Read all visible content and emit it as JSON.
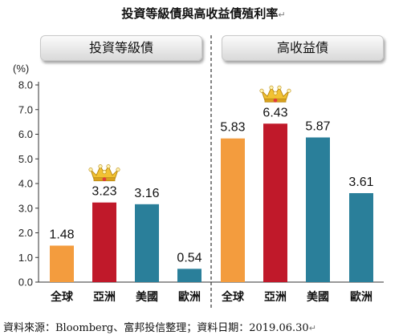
{
  "title": "投資等級債與高收益債殖利率",
  "title_mark": "↵",
  "source_note": "資料來源：Bloomberg、富邦投信整理；資料日期：2019.06.30",
  "source_mark": "↵",
  "colors": {
    "orange": "#F39C3E",
    "red": "#C0192A",
    "teal": "#2A7F9A",
    "axis": "#333333",
    "divider": "#333333"
  },
  "icons": {
    "top_marker": "crown-icon"
  },
  "chart_data": {
    "type": "bar",
    "ylabel": "(%)",
    "ylim": [
      0,
      8
    ],
    "yticks": [
      "0.0",
      "1.0",
      "2.0",
      "3.0",
      "4.0",
      "5.0",
      "6.0",
      "7.0",
      "8.0"
    ],
    "grid": false,
    "groups": [
      {
        "name": "投資等級債",
        "categories": [
          "全球",
          "亞洲",
          "美國",
          "歐洲"
        ],
        "values": [
          1.48,
          3.23,
          3.16,
          0.54
        ],
        "labels": [
          "1.48",
          "3.23",
          "3.16",
          "0.54"
        ],
        "colors": [
          "#F39C3E",
          "#C0192A",
          "#2A7F9A",
          "#2A7F9A"
        ],
        "crown_index": 1
      },
      {
        "name": "高收益債",
        "categories": [
          "全球",
          "亞洲",
          "美國",
          "歐洲"
        ],
        "values": [
          5.83,
          6.43,
          5.87,
          3.61
        ],
        "labels": [
          "5.83",
          "6.43",
          "5.87",
          "3.61"
        ],
        "colors": [
          "#F39C3E",
          "#C0192A",
          "#2A7F9A",
          "#2A7F9A"
        ],
        "crown_index": 1
      }
    ]
  }
}
